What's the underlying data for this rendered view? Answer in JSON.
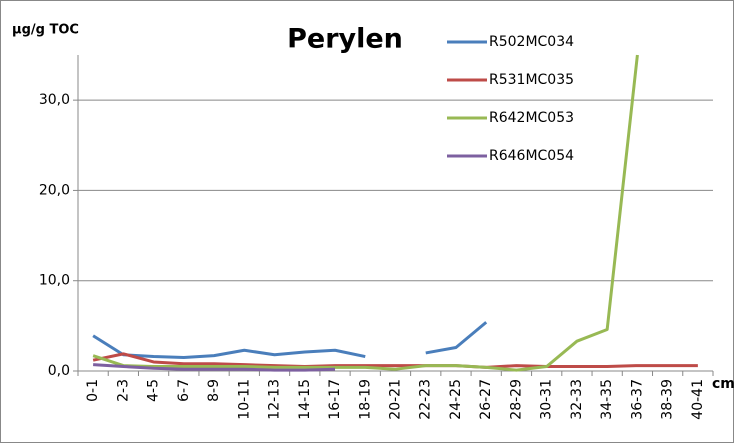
{
  "chart_data": {
    "type": "line",
    "title": "Perylen",
    "y_label": "µg/g TOC",
    "x_label": "cm",
    "categories": [
      "0-1",
      "2-3",
      "4-5",
      "6-7",
      "8-9",
      "10-11",
      "12-13",
      "14-15",
      "16-17",
      "18-19",
      "20-21",
      "22-23",
      "24-25",
      "26-27",
      "28-29",
      "30-31",
      "32-33",
      "34-35",
      "36-37",
      "38-39",
      "40-41"
    ],
    "series": [
      {
        "name": "R502MC034",
        "color": "#4a7ebb",
        "values": [
          3.9,
          1.8,
          1.6,
          1.5,
          1.7,
          2.3,
          1.8,
          2.1,
          2.3,
          1.6,
          null,
          2.0,
          2.6,
          5.4,
          null,
          null,
          null,
          null,
          null,
          null,
          null
        ]
      },
      {
        "name": "R531MC035",
        "color": "#be4b48",
        "values": [
          1.2,
          1.9,
          1.0,
          0.8,
          0.8,
          0.7,
          0.6,
          0.5,
          0.6,
          0.6,
          0.6,
          0.6,
          0.6,
          0.4,
          0.6,
          0.5,
          0.5,
          0.5,
          0.6,
          0.6,
          0.6
        ]
      },
      {
        "name": "R642MC053",
        "color": "#98b954",
        "values": [
          1.7,
          0.6,
          0.5,
          0.5,
          0.5,
          0.5,
          0.4,
          0.4,
          0.4,
          0.4,
          0.2,
          0.6,
          0.6,
          0.4,
          0.1,
          0.5,
          3.3,
          4.6,
          35,
          null,
          null
        ]
      },
      {
        "name": "R646MC054",
        "color": "#7d60a0",
        "values": [
          0.7,
          0.5,
          0.3,
          0.2,
          0.2,
          0.2,
          0.1,
          0.1,
          0.2,
          null,
          null,
          null,
          null,
          null,
          null,
          null,
          null,
          null,
          null,
          null,
          null
        ]
      }
    ],
    "ylim": [
      0,
      35
    ],
    "yticks": [
      {
        "value": 0,
        "label": "0,0"
      },
      {
        "value": 10,
        "label": "10,0"
      },
      {
        "value": 20,
        "label": "20,0"
      },
      {
        "value": 30,
        "label": "30,0"
      }
    ],
    "grid": true,
    "legend": "top-right"
  }
}
